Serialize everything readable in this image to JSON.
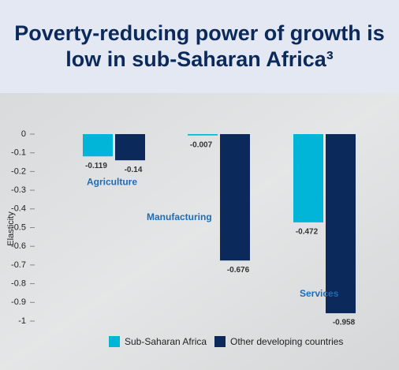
{
  "chart_data": {
    "type": "bar",
    "title": "Poverty-reducing power of growth is low in sub-Saharan Africa³",
    "y_label": "Elasticity",
    "categories": [
      "Agriculture",
      "Manufacturing",
      "Services"
    ],
    "series": [
      {
        "name": "Sub-Saharan Africa",
        "color": "#00b5d8",
        "values": [
          -0.119,
          -0.007,
          -0.472
        ]
      },
      {
        "name": "Other developing countries",
        "color": "#0b2a5b",
        "values": [
          -0.14,
          -0.676,
          -0.958
        ]
      }
    ],
    "ylim": [
      -1,
      0
    ],
    "yticks": [
      0,
      -0.1,
      -0.2,
      -0.3,
      -0.4,
      -0.5,
      -0.6,
      -0.7,
      -0.8,
      -0.9,
      -1
    ],
    "legend": "bottom"
  }
}
